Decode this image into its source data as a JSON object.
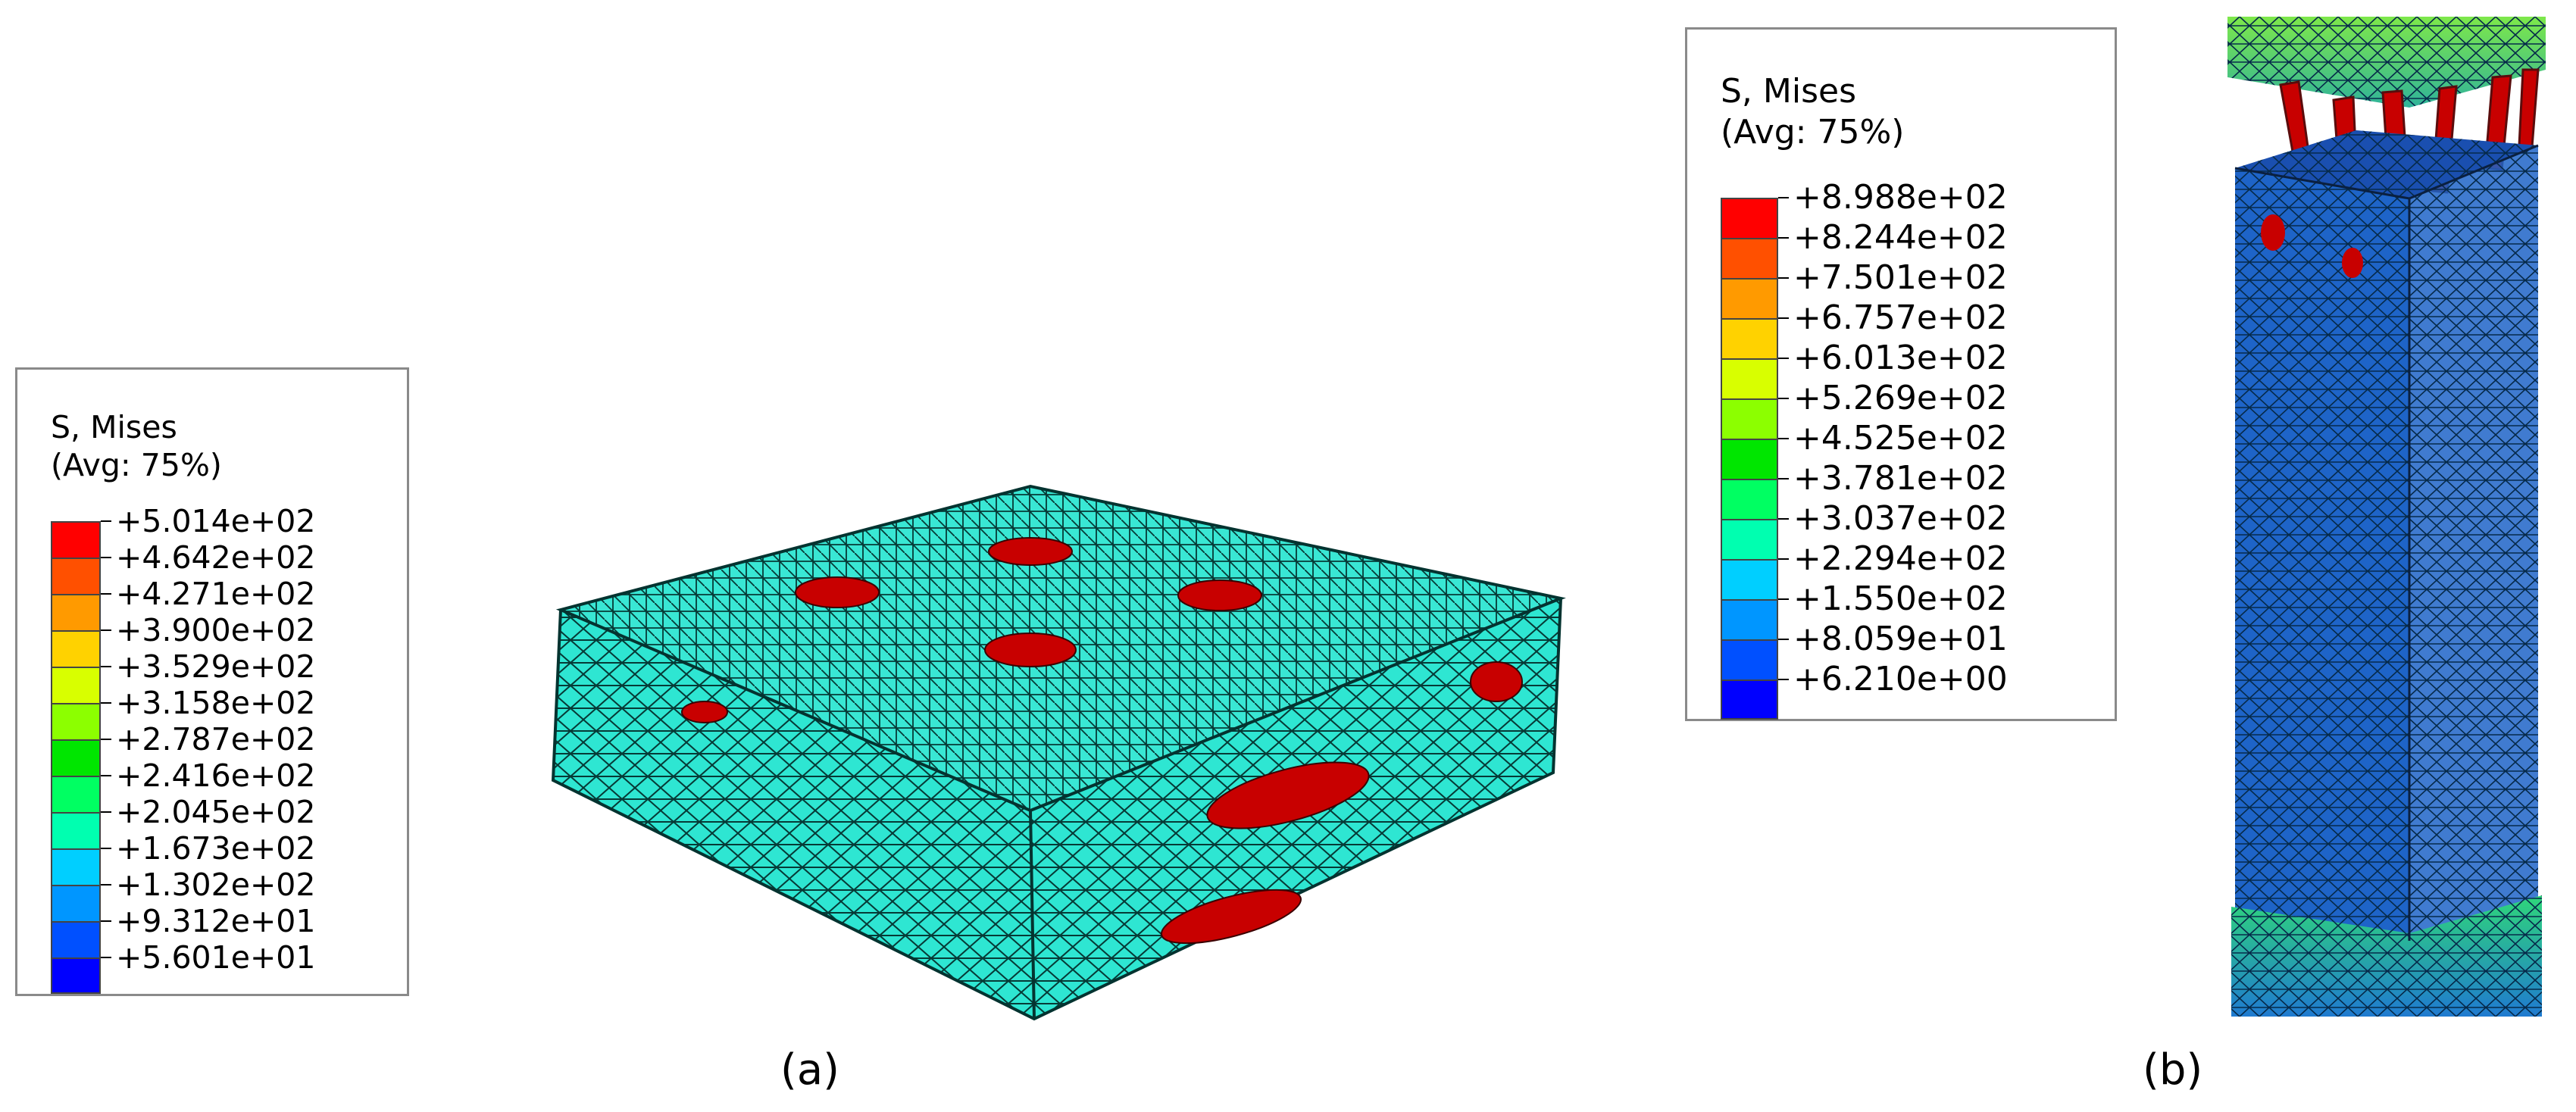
{
  "panels": [
    {
      "caption": "(a)",
      "legend": {
        "title": "S, Mises",
        "subtitle": "(Avg: 75%)",
        "levels": [
          "+5.014e+02",
          "+4.642e+02",
          "+4.271e+02",
          "+3.900e+02",
          "+3.529e+02",
          "+3.158e+02",
          "+2.787e+02",
          "+2.416e+02",
          "+2.045e+02",
          "+1.673e+02",
          "+1.302e+02",
          "+9.312e+01",
          "+5.601e+01"
        ],
        "colors": [
          "#ff0000",
          "#ff5000",
          "#ff9a00",
          "#ffd200",
          "#d8ff00",
          "#8cff00",
          "#00e600",
          "#00ff62",
          "#00ffb0",
          "#00cfff",
          "#0096ff",
          "#0050ff",
          "#0000ff"
        ]
      },
      "model_color": "#2ee6d2",
      "highlight_color": "#c80000"
    },
    {
      "caption": "(b)",
      "legend": {
        "title": "S, Mises",
        "subtitle": "(Avg: 75%)",
        "levels": [
          "+8.988e+02",
          "+8.244e+02",
          "+7.501e+02",
          "+6.757e+02",
          "+6.013e+02",
          "+5.269e+02",
          "+4.525e+02",
          "+3.781e+02",
          "+3.037e+02",
          "+2.294e+02",
          "+1.550e+02",
          "+8.059e+01",
          "+6.210e+00"
        ],
        "colors": [
          "#ff0000",
          "#ff5000",
          "#ff9a00",
          "#ffd200",
          "#d8ff00",
          "#8cff00",
          "#00e600",
          "#00ff62",
          "#00ffb0",
          "#00cfff",
          "#0096ff",
          "#0050ff",
          "#0000ff"
        ]
      },
      "model_color": "#1e64c8",
      "highlight_color": "#c80000"
    }
  ]
}
